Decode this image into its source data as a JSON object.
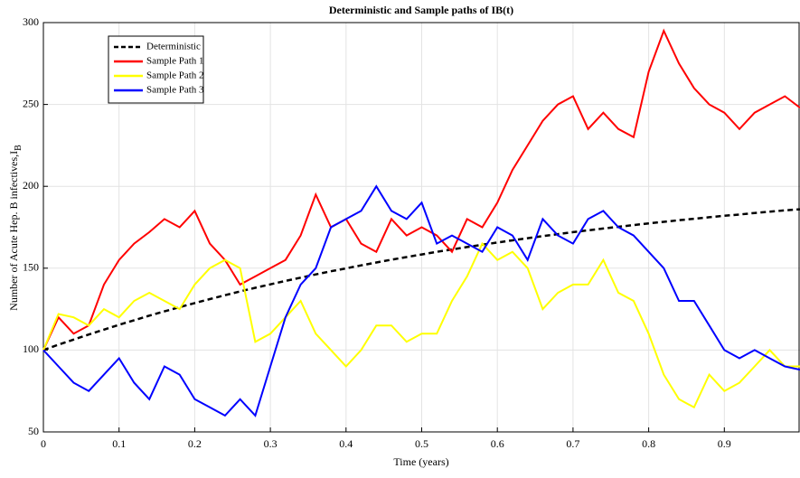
{
  "chart_data": {
    "type": "line",
    "title": "Deterministic and Sample paths of IB(t)",
    "xlabel": "Time (years)",
    "ylabel": "Number of Acute Hep. B infectives,I",
    "ylabel_subscript": "B",
    "x": [
      0,
      0.02,
      0.04,
      0.06,
      0.08,
      0.1,
      0.12,
      0.14,
      0.16,
      0.18,
      0.2,
      0.22,
      0.24,
      0.26,
      0.28,
      0.3,
      0.32,
      0.34,
      0.36,
      0.38,
      0.4,
      0.42,
      0.44,
      0.46,
      0.48,
      0.5,
      0.52,
      0.54,
      0.56,
      0.58,
      0.6,
      0.62,
      0.64,
      0.66,
      0.68,
      0.7,
      0.72,
      0.74,
      0.76,
      0.78,
      0.8,
      0.82,
      0.84,
      0.86,
      0.88,
      0.9,
      0.92,
      0.94,
      0.96,
      0.98,
      1
    ],
    "series": [
      {
        "name": "Deterministic",
        "color": "#000000",
        "dashed": true,
        "values": [
          100,
          103.3,
          106.4,
          109.5,
          112.5,
          115.4,
          118.2,
          121.0,
          123.6,
          126.2,
          128.7,
          131.1,
          133.5,
          135.8,
          138.0,
          140.1,
          142.2,
          144.2,
          146.2,
          148.1,
          149.9,
          151.7,
          153.5,
          155.2,
          156.8,
          158.4,
          160.0,
          161.4,
          162.9,
          164.3,
          165.7,
          167.0,
          168.3,
          169.6,
          170.8,
          172.0,
          173.1,
          174.2,
          175.3,
          176.3,
          177.4,
          178.3,
          179.3,
          180.2,
          181.1,
          182.0,
          182.8,
          183.7,
          184.5,
          185.3,
          186.0
        ]
      },
      {
        "name": "Sample Path 1",
        "color": "#ff0000",
        "dashed": false,
        "values": [
          100,
          120,
          110,
          115,
          140,
          155,
          165,
          172,
          180,
          175,
          185,
          165,
          155,
          140,
          145,
          150,
          155,
          170,
          195,
          175,
          180,
          165,
          160,
          180,
          170,
          175,
          170,
          160,
          180,
          175,
          190,
          210,
          225,
          240,
          250,
          255,
          235,
          245,
          235,
          230,
          270,
          295,
          275,
          260,
          250,
          245,
          235,
          245,
          250,
          255,
          248
        ]
      },
      {
        "name": "Sample Path 2",
        "color": "#ffff00",
        "dashed": false,
        "values": [
          100,
          122,
          120,
          115,
          125,
          120,
          130,
          135,
          130,
          125,
          140,
          150,
          155,
          150,
          105,
          110,
          120,
          130,
          110,
          100,
          90,
          100,
          115,
          115,
          105,
          110,
          110,
          130,
          145,
          165,
          155,
          160,
          150,
          125,
          135,
          140,
          140,
          155,
          135,
          130,
          110,
          85,
          70,
          65,
          85,
          75,
          80,
          90,
          100,
          90,
          90
        ]
      },
      {
        "name": "Sample Path 3",
        "color": "#0000ff",
        "dashed": false,
        "values": [
          100,
          90,
          80,
          75,
          85,
          95,
          80,
          70,
          90,
          85,
          70,
          65,
          60,
          70,
          60,
          90,
          120,
          140,
          150,
          175,
          180,
          185,
          200,
          185,
          180,
          190,
          165,
          170,
          165,
          160,
          175,
          170,
          155,
          180,
          170,
          165,
          180,
          185,
          175,
          170,
          160,
          150,
          130,
          130,
          115,
          100,
          95,
          100,
          95,
          90,
          88
        ]
      }
    ],
    "xlim": [
      0,
      1
    ],
    "xticks": [
      0,
      0.1,
      0.2,
      0.3,
      0.4,
      0.5,
      0.6,
      0.7,
      0.8,
      0.9
    ],
    "ylim": [
      50,
      300
    ],
    "yticks": [
      50,
      100,
      150,
      200,
      250,
      300
    ],
    "grid": true,
    "legend": "upper left"
  }
}
